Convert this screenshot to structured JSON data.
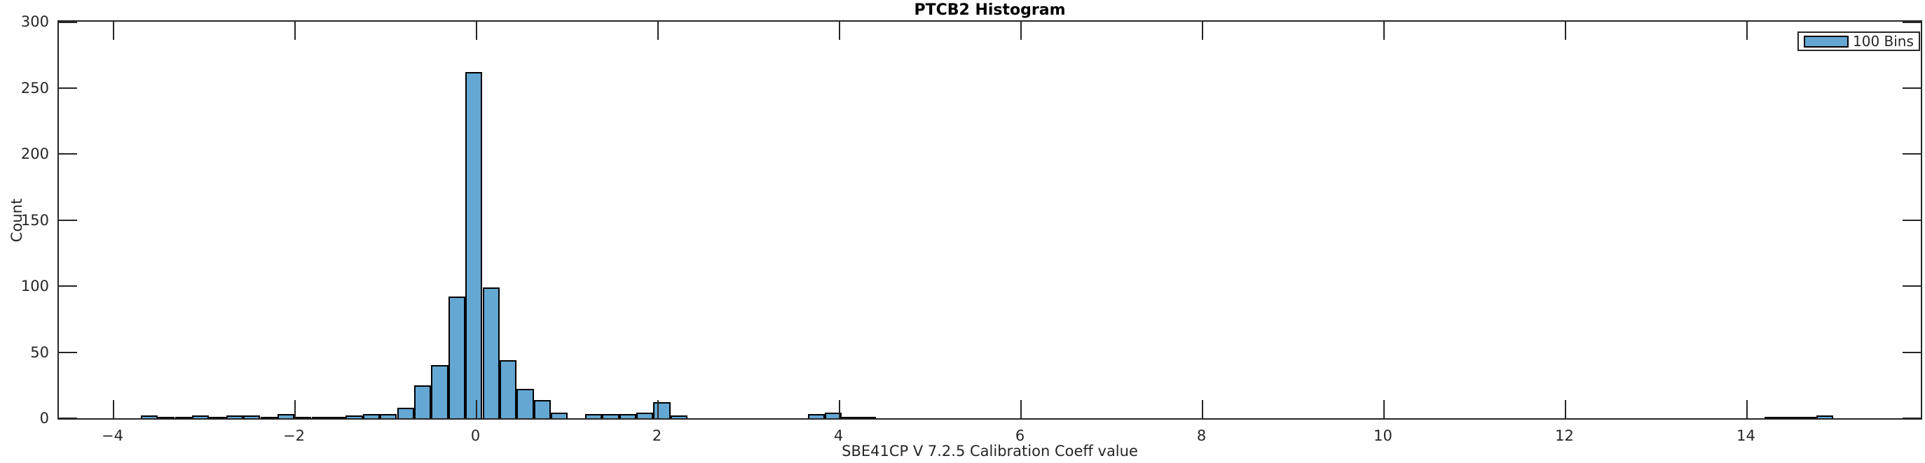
{
  "figure": {
    "title": "PTCB2 Histogram",
    "xlabel": "SBE41CP V 7.2.5 Calibration Coeff value",
    "ylabel": "Count",
    "legend": {
      "label": "100 Bins"
    }
  },
  "chart_data": {
    "type": "bar",
    "subtype": "histogram",
    "title": "PTCB2 Histogram",
    "xlabel": "SBE41CP V 7.2.5 Calibration Coeff value",
    "ylabel": "Count",
    "legend_entries": [
      "100 Bins"
    ],
    "legend_position": "upper right",
    "grid": false,
    "xlim": [
      -4.6,
      15.94
    ],
    "ylim": [
      0,
      300
    ],
    "bar_color": "#63a7d2",
    "bar_edge_color": "#000000",
    "axis_color": "#262626",
    "x_ticks": [
      {
        "value": -4,
        "label": "−4"
      },
      {
        "value": -2,
        "label": "−2"
      },
      {
        "value": 0,
        "label": "0"
      },
      {
        "value": 2,
        "label": "2"
      },
      {
        "value": 4,
        "label": "4"
      },
      {
        "value": 6,
        "label": "6"
      },
      {
        "value": 8,
        "label": "8"
      },
      {
        "value": 10,
        "label": "10"
      },
      {
        "value": 12,
        "label": "12"
      },
      {
        "value": 14,
        "label": "14"
      }
    ],
    "y_ticks": [
      {
        "value": 0,
        "label": "0"
      },
      {
        "value": 50,
        "label": "50"
      },
      {
        "value": 100,
        "label": "100"
      },
      {
        "value": 150,
        "label": "150"
      },
      {
        "value": 200,
        "label": "200"
      },
      {
        "value": 250,
        "label": "250"
      },
      {
        "value": 300,
        "label": "300"
      }
    ],
    "bin_width": 0.1884,
    "bins": [
      {
        "x": -3.69,
        "count": 2
      },
      {
        "x": -3.502,
        "count": 1
      },
      {
        "x": -3.313,
        "count": 1
      },
      {
        "x": -3.125,
        "count": 2
      },
      {
        "x": -2.937,
        "count": 1
      },
      {
        "x": -2.748,
        "count": 2
      },
      {
        "x": -2.56,
        "count": 2
      },
      {
        "x": -2.371,
        "count": 1
      },
      {
        "x": -2.183,
        "count": 3
      },
      {
        "x": -1.995,
        "count": 1
      },
      {
        "x": -1.806,
        "count": 1
      },
      {
        "x": -1.618,
        "count": 1
      },
      {
        "x": -1.43,
        "count": 2
      },
      {
        "x": -1.241,
        "count": 3
      },
      {
        "x": -1.053,
        "count": 3
      },
      {
        "x": -0.864,
        "count": 8
      },
      {
        "x": -0.676,
        "count": 25
      },
      {
        "x": -0.488,
        "count": 40
      },
      {
        "x": -0.299,
        "count": 92
      },
      {
        "x": -0.111,
        "count": 262
      },
      {
        "x": 0.077,
        "count": 99
      },
      {
        "x": 0.266,
        "count": 44
      },
      {
        "x": 0.454,
        "count": 22
      },
      {
        "x": 0.642,
        "count": 14
      },
      {
        "x": 0.831,
        "count": 4
      },
      {
        "x": 1.208,
        "count": 3
      },
      {
        "x": 1.396,
        "count": 3
      },
      {
        "x": 1.584,
        "count": 3
      },
      {
        "x": 1.773,
        "count": 4
      },
      {
        "x": 1.961,
        "count": 12
      },
      {
        "x": 2.149,
        "count": 2
      },
      {
        "x": 3.66,
        "count": 3
      },
      {
        "x": 3.848,
        "count": 4
      },
      {
        "x": 4.037,
        "count": 1
      },
      {
        "x": 4.225,
        "count": 1
      },
      {
        "x": 14.208,
        "count": 1
      },
      {
        "x": 14.396,
        "count": 1
      },
      {
        "x": 14.585,
        "count": 1
      },
      {
        "x": 14.773,
        "count": 2
      }
    ]
  }
}
